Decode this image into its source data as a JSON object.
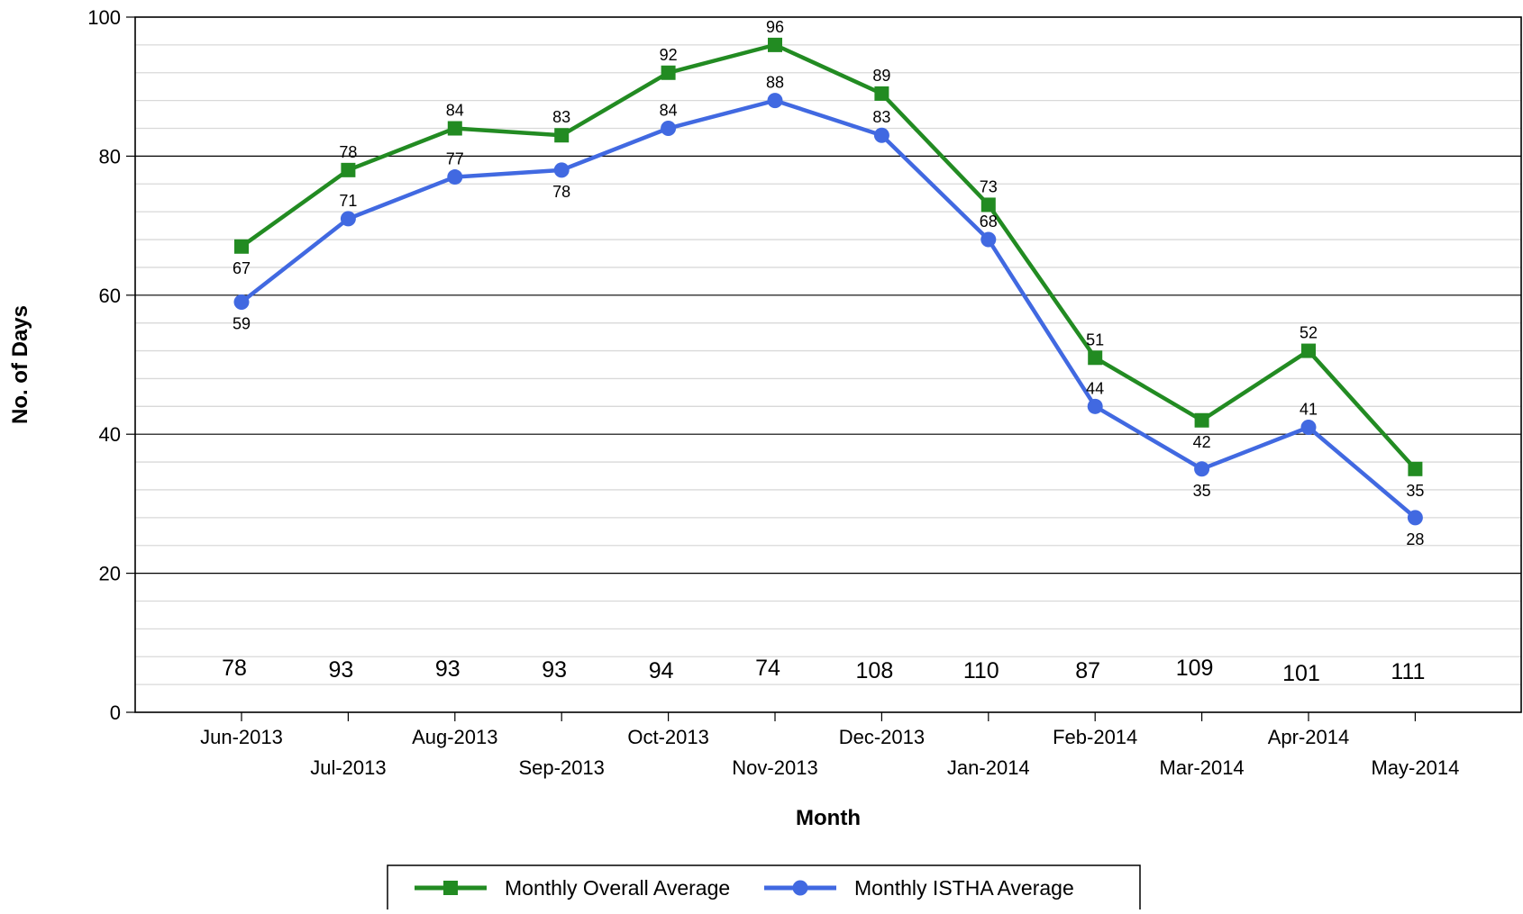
{
  "chart_data": {
    "type": "line",
    "title": "",
    "xlabel": "Month",
    "ylabel": "No. of Days",
    "ylim": [
      0,
      100
    ],
    "yticks": [
      0,
      20,
      40,
      60,
      80,
      100
    ],
    "minor_grid_step": 4,
    "grid": true,
    "legend_position": "bottom",
    "categories": [
      "Jun-2013",
      "Jul-2013",
      "Aug-2013",
      "Sep-2013",
      "Oct-2013",
      "Nov-2013",
      "Dec-2013",
      "Jan-2014",
      "Feb-2014",
      "Mar-2014",
      "Apr-2014",
      "May-2014"
    ],
    "series": [
      {
        "name": "Monthly Overall Average",
        "color": "#228b22",
        "marker": "square",
        "values": [
          67,
          78,
          84,
          83,
          92,
          96,
          89,
          73,
          51,
          42,
          52,
          35
        ]
      },
      {
        "name": "Monthly ISTHA Average",
        "color": "#4169e1",
        "marker": "circle",
        "values": [
          59,
          71,
          77,
          78,
          84,
          88,
          83,
          68,
          44,
          35,
          41,
          28
        ]
      }
    ],
    "counts": [
      78,
      93,
      93,
      93,
      94,
      74,
      108,
      110,
      87,
      109,
      101,
      111
    ]
  }
}
